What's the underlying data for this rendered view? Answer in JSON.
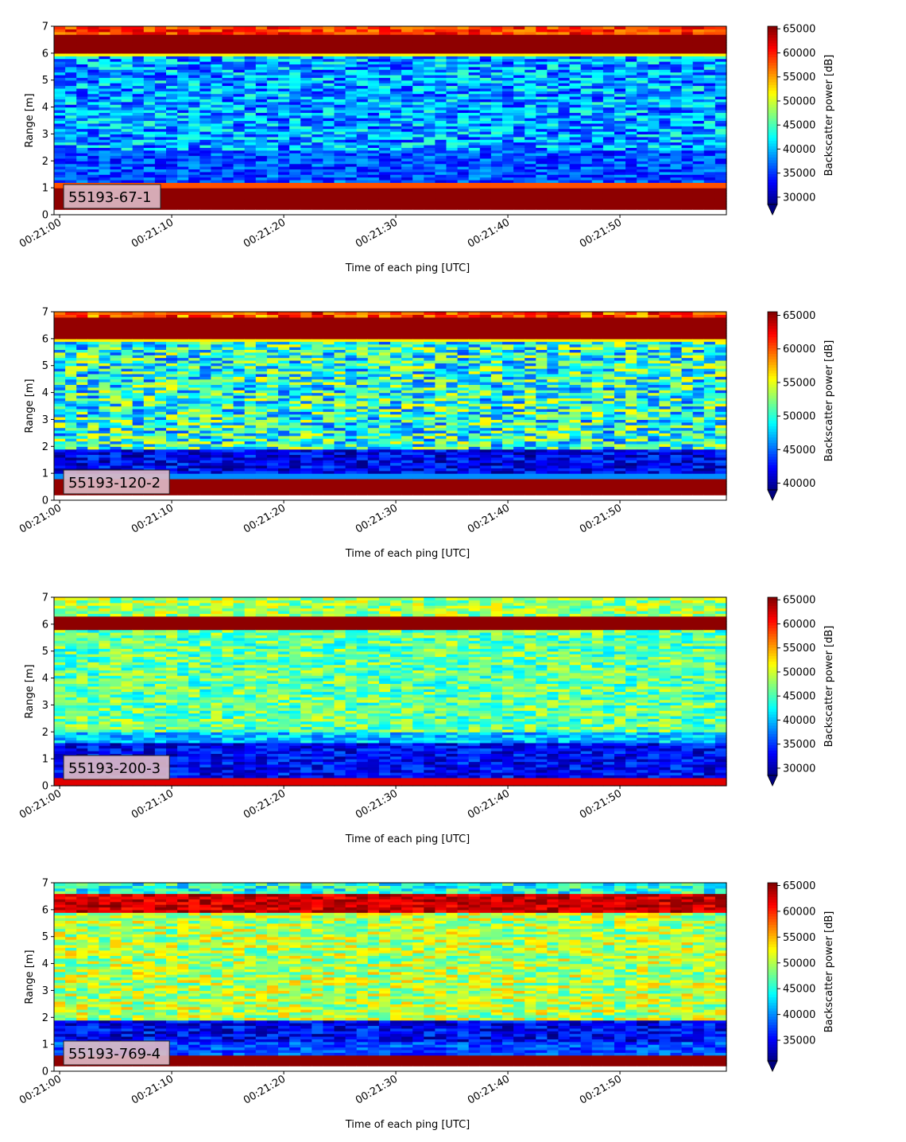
{
  "chart_data": [
    {
      "type": "heatmap",
      "label": "55193-67-1",
      "xlabel": "Time of each ping [UTC]",
      "ylabel": "Range [m]",
      "xticks": [
        "00:21:00",
        "00:21:10",
        "00:21:20",
        "00:21:30",
        "00:21:40",
        "00:21:50"
      ],
      "yticks": [
        "0",
        "1",
        "2",
        "3",
        "4",
        "5",
        "6",
        "7"
      ],
      "xlim": [
        "00:20:59.5",
        "00:21:59.5"
      ],
      "ylim": [
        0,
        7
      ],
      "colorbar": {
        "label": "Backscatter power [dB]",
        "min": 28500,
        "max": 65535,
        "ticks": [
          "30000",
          "35000",
          "40000",
          "45000",
          "50000",
          "55000",
          "60000",
          "65000"
        ],
        "extend": "min"
      },
      "bands": [
        {
          "from": 0.2,
          "to": 1.05,
          "value": 65000
        },
        {
          "from": 1.05,
          "to": 1.2,
          "value": 58000
        },
        {
          "from": 1.2,
          "to": 2.4,
          "value": 36000,
          "noise": 4000
        },
        {
          "from": 2.4,
          "to": 5.9,
          "value": 39000,
          "noise": 6000
        },
        {
          "from": 5.9,
          "to": 6.05,
          "value": 52000
        },
        {
          "from": 6.05,
          "to": 6.7,
          "value": 65000
        },
        {
          "from": 6.7,
          "to": 7.0,
          "value": 59000,
          "noise": 4000
        }
      ]
    },
    {
      "type": "heatmap",
      "label": "55193-120-2",
      "xlabel": "Time of each ping [UTC]",
      "ylabel": "Range [m]",
      "xticks": [
        "00:21:00",
        "00:21:10",
        "00:21:20",
        "00:21:30",
        "00:21:40",
        "00:21:50"
      ],
      "yticks": [
        "0",
        "1",
        "2",
        "3",
        "4",
        "5",
        "6",
        "7"
      ],
      "xlim": [
        "00:20:59.5",
        "00:21:59.5"
      ],
      "ylim": [
        0,
        7
      ],
      "colorbar": {
        "label": "Backscatter power [dB]",
        "min": 39000,
        "max": 65535,
        "ticks": [
          "40000",
          "45000",
          "50000",
          "55000",
          "60000",
          "65000"
        ],
        "extend": "min"
      },
      "bands": [
        {
          "from": 0.2,
          "to": 0.8,
          "value": 65000
        },
        {
          "from": 0.8,
          "to": 1.0,
          "value": 46000
        },
        {
          "from": 1.0,
          "to": 1.9,
          "value": 42000,
          "noise": 3000
        },
        {
          "from": 1.9,
          "to": 5.9,
          "value": 50000,
          "noise": 6000
        },
        {
          "from": 5.9,
          "to": 6.05,
          "value": 56000
        },
        {
          "from": 6.05,
          "to": 6.8,
          "value": 65000
        },
        {
          "from": 6.8,
          "to": 7.0,
          "value": 60000,
          "noise": 4000
        }
      ]
    },
    {
      "type": "heatmap",
      "label": "55193-200-3",
      "xlabel": "Time of each ping [UTC]",
      "ylabel": "Range [m]",
      "xticks": [
        "00:21:00",
        "00:21:10",
        "00:21:20",
        "00:21:30",
        "00:21:40",
        "00:21:50"
      ],
      "yticks": [
        "0",
        "1",
        "2",
        "3",
        "4",
        "5",
        "6",
        "7"
      ],
      "xlim": [
        "00:20:59.5",
        "00:21:59.5"
      ],
      "ylim": [
        0,
        7
      ],
      "colorbar": {
        "label": "Backscatter power [dB]",
        "min": 28500,
        "max": 65535,
        "ticks": [
          "30000",
          "35000",
          "40000",
          "45000",
          "50000",
          "55000",
          "60000",
          "65000"
        ],
        "extend": "min"
      },
      "bands": [
        {
          "from": 0.0,
          "to": 0.3,
          "value": 62000
        },
        {
          "from": 0.3,
          "to": 1.6,
          "value": 33000,
          "noise": 4000
        },
        {
          "from": 1.6,
          "to": 2.0,
          "value": 40000,
          "noise": 4000
        },
        {
          "from": 2.0,
          "to": 5.8,
          "value": 46000,
          "noise": 5000
        },
        {
          "from": 5.8,
          "to": 6.3,
          "value": 65000
        },
        {
          "from": 6.3,
          "to": 7.0,
          "value": 48000,
          "noise": 5000
        }
      ]
    },
    {
      "type": "heatmap",
      "label": "55193-769-4",
      "xlabel": "Time of each ping [UTC]",
      "ylabel": "Range [m]",
      "xticks": [
        "00:21:00",
        "00:21:10",
        "00:21:20",
        "00:21:30",
        "00:21:40",
        "00:21:50"
      ],
      "yticks": [
        "0",
        "1",
        "2",
        "3",
        "4",
        "5",
        "6",
        "7"
      ],
      "xlim": [
        "00:20:59.5",
        "00:21:59.5"
      ],
      "ylim": [
        0,
        7
      ],
      "colorbar": {
        "label": "Backscatter power [dB]",
        "min": 31000,
        "max": 65535,
        "ticks": [
          "35000",
          "40000",
          "45000",
          "50000",
          "55000",
          "60000",
          "65000"
        ],
        "extend": "min"
      },
      "bands": [
        {
          "from": 0.2,
          "to": 0.65,
          "value": 65000
        },
        {
          "from": 0.65,
          "to": 1.1,
          "value": 38000,
          "noise": 3000
        },
        {
          "from": 1.1,
          "to": 1.9,
          "value": 35000,
          "noise": 4000
        },
        {
          "from": 1.9,
          "to": 5.9,
          "value": 50000,
          "noise": 5000
        },
        {
          "from": 5.9,
          "to": 6.6,
          "value": 63000,
          "noise": 3000
        },
        {
          "from": 6.6,
          "to": 7.0,
          "value": 45000,
          "noise": 5000
        }
      ]
    }
  ]
}
